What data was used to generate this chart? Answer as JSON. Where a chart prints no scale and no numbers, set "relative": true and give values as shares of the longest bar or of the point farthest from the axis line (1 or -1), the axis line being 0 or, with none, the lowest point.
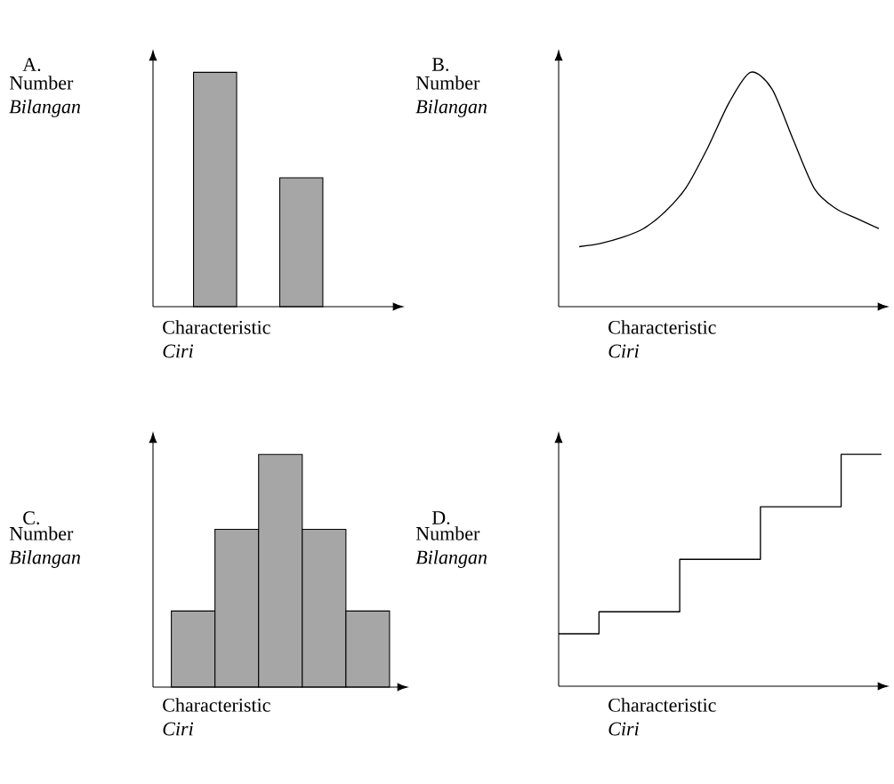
{
  "chart_data": [
    {
      "type": "bar",
      "title": "A.",
      "xlabel": "Characteristic *Ciri*",
      "ylabel": "Number *Bilangan*",
      "categories": [
        null,
        null
      ],
      "values": [
        1,
        0.55
      ],
      "color": "#a6a6a6",
      "relative": true
    },
    {
      "type": "line",
      "title": "B.",
      "xlabel": "Characteristic *Ciri*",
      "ylabel": "Number *Bilangan*",
      "categories": [
        null,
        null,
        null,
        null,
        null,
        null,
        null,
        null,
        null,
        null,
        null,
        null,
        null,
        null,
        null
      ],
      "values": [
        0.256,
        0.27,
        0.295,
        0.333,
        0.404,
        0.509,
        0.677,
        0.87,
        1,
        0.93,
        0.712,
        0.502,
        0.418,
        0.375,
        0.333
      ],
      "color": "#000000",
      "relative": true
    },
    {
      "type": "bar",
      "title": "C.",
      "xlabel": "Characteristic *Ciri*",
      "ylabel": "Number *Bilangan*",
      "categories": [
        null,
        null,
        null,
        null,
        null
      ],
      "values": [
        0.327,
        0.678,
        1,
        0.678,
        0.327
      ],
      "color": "#a6a6a6",
      "relative": true
    },
    {
      "type": "step",
      "title": "D.",
      "xlabel": "Characteristic *Ciri*",
      "ylabel": "Number *Bilangan*",
      "categories": [
        null,
        null,
        null,
        null,
        null
      ],
      "values": [
        0.226,
        0.321,
        0.547,
        0.774,
        1
      ],
      "color": "#000000",
      "relative": true
    }
  ]
}
